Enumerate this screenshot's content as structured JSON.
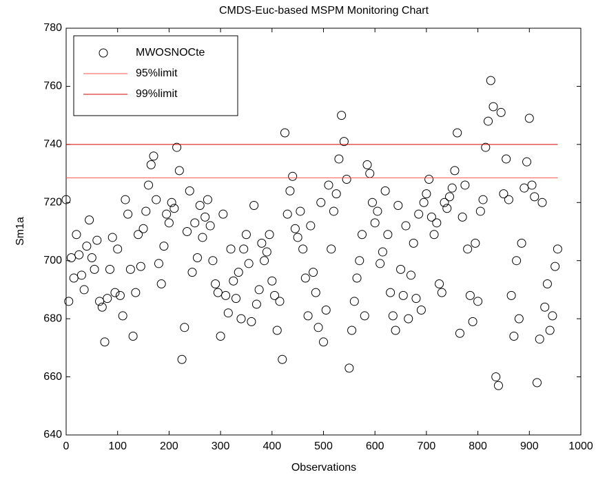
{
  "chart_data": {
    "type": "scatter",
    "title": "CMDS-Euc-based MSPM Monitoring Chart",
    "xlabel": "Observations",
    "ylabel": "Sm1a",
    "xlim": [
      0,
      1000
    ],
    "xticks": [
      0,
      100,
      200,
      300,
      400,
      500,
      600,
      700,
      800,
      900,
      1000
    ],
    "ylim": [
      640,
      780
    ],
    "yticks": [
      640,
      660,
      680,
      700,
      720,
      740,
      760,
      780
    ],
    "series": [
      {
        "name": "MWOSNOCte",
        "color": "#000000",
        "x": [
          0,
          5,
          10,
          15,
          20,
          25,
          30,
          35,
          40,
          45,
          50,
          55,
          60,
          65,
          70,
          75,
          80,
          85,
          90,
          95,
          100,
          105,
          110,
          115,
          120,
          125,
          130,
          135,
          140,
          145,
          150,
          155,
          160,
          165,
          170,
          175,
          180,
          185,
          190,
          195,
          200,
          205,
          210,
          215,
          220,
          225,
          230,
          235,
          240,
          245,
          250,
          255,
          260,
          265,
          270,
          275,
          280,
          285,
          290,
          295,
          300,
          305,
          310,
          315,
          320,
          325,
          330,
          335,
          340,
          345,
          350,
          355,
          360,
          365,
          370,
          375,
          380,
          385,
          390,
          395,
          400,
          405,
          410,
          415,
          420,
          425,
          430,
          435,
          440,
          445,
          450,
          455,
          460,
          465,
          470,
          475,
          480,
          485,
          490,
          495,
          500,
          505,
          510,
          515,
          520,
          525,
          530,
          535,
          540,
          545,
          550,
          555,
          560,
          565,
          570,
          575,
          580,
          585,
          590,
          595,
          600,
          605,
          610,
          615,
          620,
          625,
          630,
          635,
          640,
          645,
          650,
          655,
          660,
          665,
          670,
          675,
          680,
          685,
          690,
          695,
          700,
          705,
          710,
          715,
          720,
          725,
          730,
          735,
          740,
          745,
          750,
          755,
          760,
          765,
          770,
          775,
          780,
          785,
          790,
          795,
          800,
          805,
          810,
          815,
          820,
          825,
          830,
          835,
          840,
          845,
          850,
          855,
          860,
          865,
          870,
          875,
          880,
          885,
          890,
          895,
          900,
          905,
          910,
          915,
          920,
          925,
          930,
          935,
          940,
          945,
          950,
          955
        ],
        "values": [
          721,
          686,
          701,
          694,
          709,
          702,
          695,
          690,
          705,
          714,
          701,
          697,
          707,
          686,
          684,
          672,
          687,
          697,
          708,
          689,
          704,
          688,
          681,
          721,
          716,
          697,
          674,
          689,
          709,
          698,
          711,
          717,
          726,
          733,
          736,
          721,
          699,
          692,
          705,
          716,
          713,
          720,
          718,
          739,
          731,
          666,
          677,
          710,
          724,
          696,
          713,
          701,
          719,
          708,
          715,
          721,
          712,
          700,
          692,
          689,
          674,
          716,
          688,
          682,
          704,
          693,
          687,
          696,
          680,
          704,
          709,
          699,
          679,
          719,
          685,
          690,
          706,
          700,
          703,
          709,
          693,
          688,
          676,
          686,
          666,
          744,
          716,
          724,
          729,
          711,
          708,
          717,
          704,
          694,
          681,
          712,
          696,
          689,
          677,
          720,
          672,
          683,
          726,
          704,
          717,
          723,
          735,
          750,
          741,
          728,
          663,
          676,
          686,
          694,
          700,
          709,
          681,
          733,
          730,
          720,
          713,
          717,
          699,
          703,
          724,
          709,
          689,
          681,
          676,
          719,
          697,
          688,
          712,
          680,
          695,
          706,
          687,
          716,
          683,
          720,
          723,
          728,
          715,
          709,
          713,
          692,
          689,
          720,
          718,
          722,
          725,
          731,
          744,
          675,
          715,
          726,
          704,
          688,
          679,
          706,
          686,
          717,
          721,
          739,
          748,
          762,
          753,
          660,
          657,
          751,
          723,
          735,
          721,
          688,
          674,
          700,
          680,
          706,
          725,
          734,
          749,
          726,
          722,
          658,
          673,
          720,
          684,
          692,
          676,
          681,
          698,
          704
        ]
      }
    ],
    "limits": [
      {
        "name": "95%limit",
        "color": "#ff5050",
        "value": 728.5
      },
      {
        "name": "99%limit",
        "color": "#d00000",
        "value": 740
      }
    ]
  }
}
